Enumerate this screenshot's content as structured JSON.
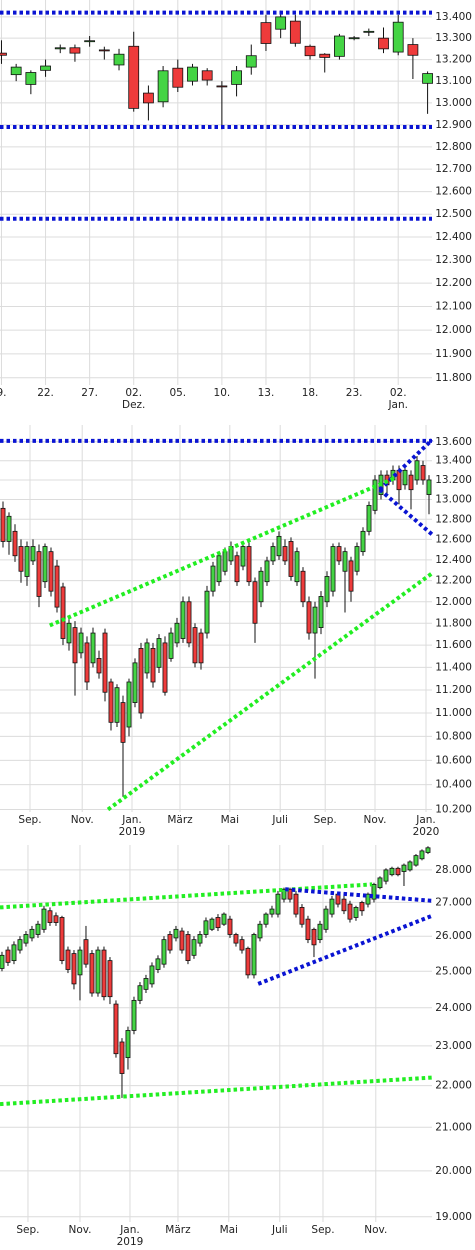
{
  "chart_data": [
    {
      "type": "candlestick",
      "log": true,
      "grid": true,
      "up_color": "#44d444",
      "down_color": "#ee3b3b",
      "ylim": [
        11770,
        13480
      ],
      "xlim": [
        -0.1,
        29.3
      ],
      "yticks": [
        {
          "value": 13400,
          "label": "13.400"
        },
        {
          "value": 13300,
          "label": "13.300"
        },
        {
          "value": 13200,
          "label": "13.200"
        },
        {
          "value": 13100,
          "label": "13.100"
        },
        {
          "value": 13000,
          "label": "13.000"
        },
        {
          "value": 12900,
          "label": "12.900"
        },
        {
          "value": 12800,
          "label": "12.800"
        },
        {
          "value": 12700,
          "label": "12.700"
        },
        {
          "value": 12600,
          "label": "12.600"
        },
        {
          "value": 12500,
          "label": "12.500"
        },
        {
          "value": 12400,
          "label": "12.400"
        },
        {
          "value": 12300,
          "label": "12.300"
        },
        {
          "value": 12200,
          "label": "12.200"
        },
        {
          "value": 12100,
          "label": "12.100"
        },
        {
          "value": 12000,
          "label": "12.000"
        },
        {
          "value": 11900,
          "label": "11.900"
        },
        {
          "value": 11800,
          "label": "11.800"
        }
      ],
      "xticks": [
        {
          "value": 0,
          "label": "9."
        },
        {
          "value": 3,
          "label": "22."
        },
        {
          "value": 6,
          "label": "27."
        },
        {
          "value": 9,
          "label": "02. Dez."
        },
        {
          "value": 12,
          "label": "05."
        },
        {
          "value": 15,
          "label": "10."
        },
        {
          "value": 18,
          "label": "13."
        },
        {
          "value": 21,
          "label": "18."
        },
        {
          "value": 24,
          "label": "23."
        },
        {
          "value": 27,
          "label": "02. Jan."
        }
      ],
      "open": [
        13230,
        13130,
        13085,
        13150,
        13250,
        13255,
        13285,
        13245,
        13175,
        13262,
        13045,
        13005,
        13160,
        13100,
        13148,
        13078,
        13085,
        13165,
        13373,
        13342,
        13380,
        13262,
        13225,
        13215,
        13300,
        13330,
        13300,
        13235,
        13270,
        13090
      ],
      "high": [
        13290,
        13180,
        13150,
        13200,
        13270,
        13270,
        13310,
        13260,
        13250,
        13330,
        13080,
        13170,
        13200,
        13180,
        13160,
        13100,
        13170,
        13270,
        13410,
        13430,
        13410,
        13270,
        13230,
        13320,
        13310,
        13345,
        13350,
        13410,
        13300,
        13145
      ],
      "low": [
        13180,
        13100,
        13040,
        13120,
        13230,
        13190,
        13260,
        13200,
        13150,
        12960,
        12920,
        12980,
        13050,
        13080,
        13080,
        12880,
        13030,
        13130,
        13240,
        13300,
        13260,
        13200,
        13140,
        13200,
        13290,
        13310,
        13230,
        13220,
        13110,
        12950
      ],
      "close": [
        13220,
        13165,
        13140,
        13170,
        13255,
        13230,
        13288,
        13242,
        13225,
        12975,
        13000,
        13148,
        13072,
        13165,
        13105,
        13075,
        13148,
        13218,
        13275,
        13400,
        13276,
        13218,
        13210,
        13310,
        13302,
        13332,
        13250,
        13375,
        13220,
        13135
      ],
      "lines": [
        {
          "color": "#0a14d2",
          "points": [
            [
              -0.1,
              13420
            ],
            [
              29.3,
              13420
            ]
          ]
        },
        {
          "color": "#0a14d2",
          "points": [
            [
              -0.1,
              12890
            ],
            [
              29.3,
              12890
            ]
          ]
        },
        {
          "color": "#0a14d2",
          "points": [
            [
              -0.1,
              12480
            ],
            [
              29.3,
              12480
            ]
          ]
        }
      ]
    },
    {
      "type": "candlestick",
      "log": true,
      "grid": true,
      "up_color": "#44d444",
      "down_color": "#ee3b3b",
      "ylim": [
        10180,
        13780
      ],
      "xlim": [
        -0.5,
        71.5
      ],
      "yticks": [
        {
          "value": 13600,
          "label": "13.600"
        },
        {
          "value": 13400,
          "label": "13.400"
        },
        {
          "value": 13200,
          "label": "13.200"
        },
        {
          "value": 13000,
          "label": "13.000"
        },
        {
          "value": 12800,
          "label": "12.800"
        },
        {
          "value": 12600,
          "label": "12.600"
        },
        {
          "value": 12400,
          "label": "12.400"
        },
        {
          "value": 12200,
          "label": "12.200"
        },
        {
          "value": 12000,
          "label": "12.000"
        },
        {
          "value": 11800,
          "label": "11.800"
        },
        {
          "value": 11600,
          "label": "11.600"
        },
        {
          "value": 11400,
          "label": "11.400"
        },
        {
          "value": 11200,
          "label": "11.200"
        },
        {
          "value": 11000,
          "label": "11.000"
        },
        {
          "value": 10800,
          "label": "10.800"
        },
        {
          "value": 10600,
          "label": "10.600"
        },
        {
          "value": 10400,
          "label": "10.400"
        },
        {
          "value": 10200,
          "label": "10.200"
        }
      ],
      "xticks": [
        {
          "value": 4.5,
          "label": "Sep."
        },
        {
          "value": 13.2,
          "label": "Nov."
        },
        {
          "value": 21.5,
          "label": "Jan. 2019"
        },
        {
          "value": 29.5,
          "label": "März"
        },
        {
          "value": 37.8,
          "label": "Mai"
        },
        {
          "value": 46.2,
          "label": "Juli"
        },
        {
          "value": 53.7,
          "label": "Sep."
        },
        {
          "value": 62,
          "label": "Nov."
        },
        {
          "value": 70.5,
          "label": "Jan. 2020"
        }
      ],
      "open": [
        12910,
        12580,
        12680,
        12530,
        12240,
        12390,
        12480,
        12190,
        12480,
        12340,
        12140,
        11620,
        11760,
        11530,
        11620,
        11440,
        11480,
        11710,
        11270,
        10920,
        11090,
        10880,
        11090,
        11570,
        11350,
        11570,
        11400,
        11620,
        11480,
        11620,
        11660,
        12000,
        11760,
        11710,
        11710,
        12100,
        12190,
        12290,
        12390,
        12440,
        12340,
        12530,
        12190,
        12000,
        12190,
        12390,
        12440,
        12530,
        12580,
        12190,
        12290,
        12000,
        11710,
        11760,
        12000,
        12100,
        12530,
        12290,
        12390,
        12290,
        12480,
        12680,
        12890,
        13050,
        13250,
        13200,
        13300,
        13150,
        13250,
        13200,
        13350,
        13050
      ],
      "high": [
        12980,
        12870,
        12750,
        12600,
        12580,
        12600,
        12550,
        12560,
        12520,
        12400,
        12180,
        11850,
        11820,
        11760,
        11680,
        11760,
        11550,
        11750,
        11300,
        11250,
        11150,
        11300,
        11480,
        11620,
        11660,
        11620,
        11700,
        11680,
        11760,
        11850,
        12050,
        12050,
        11800,
        11750,
        12150,
        12380,
        12480,
        12520,
        12580,
        12480,
        12560,
        12570,
        12230,
        12330,
        12430,
        12570,
        12680,
        12600,
        12620,
        12520,
        12330,
        12050,
        12000,
        12100,
        12290,
        12560,
        12570,
        12520,
        12430,
        12570,
        12720,
        12980,
        13250,
        13300,
        13300,
        13350,
        13350,
        13350,
        13300,
        13450,
        13400,
        13250
      ],
      "low": [
        12520,
        12450,
        12380,
        12180,
        12150,
        12350,
        11950,
        12130,
        12050,
        11900,
        11600,
        11550,
        11150,
        11480,
        11200,
        11400,
        11300,
        11100,
        10850,
        10880,
        10300,
        10800,
        11050,
        10950,
        11300,
        11220,
        11350,
        11150,
        11450,
        11580,
        11620,
        11580,
        11400,
        11380,
        11660,
        12050,
        12150,
        12250,
        12350,
        12150,
        12300,
        12150,
        11620,
        11950,
        12150,
        12350,
        12400,
        12350,
        12200,
        12150,
        11950,
        11650,
        11300,
        11700,
        11950,
        12050,
        12350,
        11900,
        12000,
        12250,
        12440,
        12640,
        12850,
        13000,
        13050,
        13150,
        12950,
        13100,
        12900,
        13150,
        13150,
        12850
      ],
      "close": [
        12580,
        12830,
        12440,
        12290,
        12530,
        12530,
        12050,
        12530,
        12100,
        11950,
        11660,
        11800,
        11440,
        11710,
        11270,
        11710,
        11350,
        11180,
        10920,
        11220,
        10750,
        11270,
        11440,
        11000,
        11620,
        11270,
        11660,
        11180,
        11710,
        11800,
        12000,
        11620,
        11440,
        11440,
        12100,
        12340,
        12440,
        12480,
        12530,
        12190,
        12530,
        12190,
        11800,
        12290,
        12390,
        12530,
        12630,
        12390,
        12240,
        12480,
        12000,
        11710,
        11950,
        12050,
        12240,
        12530,
        12390,
        12480,
        12100,
        12530,
        12680,
        12940,
        13200,
        13250,
        13150,
        13300,
        13100,
        13300,
        13100,
        13400,
        13200,
        13200
      ],
      "lines": [
        {
          "color": "#0a14d2",
          "points": [
            [
              -0.5,
              13610
            ],
            [
              71.5,
              13610
            ]
          ]
        },
        {
          "color": "#0a14d2",
          "points": [
            [
              62.8,
              13100
            ],
            [
              71.5,
              13620
            ]
          ]
        },
        {
          "color": "#0a14d2",
          "points": [
            [
              62.8,
              13100
            ],
            [
              71.5,
              12650
            ]
          ]
        },
        {
          "color": "#22ee22",
          "points": [
            [
              7.8,
              11780
            ],
            [
              65.3,
              13220
            ]
          ]
        },
        {
          "color": "#22ee22",
          "points": [
            [
              17.5,
              10200
            ],
            [
              71.5,
              12270
            ]
          ]
        }
      ]
    },
    {
      "type": "candlestick",
      "log": true,
      "grid": true,
      "up_color": "#44d444",
      "down_color": "#ee3b3b",
      "ylim": [
        18890,
        28790
      ],
      "xlim": [
        -0.33,
        71.67
      ],
      "yticks": [
        {
          "value": 28000,
          "label": "28.000"
        },
        {
          "value": 27000,
          "label": "27.000"
        },
        {
          "value": 26000,
          "label": "26.000"
        },
        {
          "value": 25000,
          "label": "25.000"
        },
        {
          "value": 24000,
          "label": "24.000"
        },
        {
          "value": 23000,
          "label": "23.000"
        },
        {
          "value": 22000,
          "label": "22.000"
        },
        {
          "value": 21000,
          "label": "21.000"
        },
        {
          "value": 20000,
          "label": "20.000"
        },
        {
          "value": 19000,
          "label": "19.000"
        }
      ],
      "xticks": [
        {
          "value": 4.33,
          "label": "Sep."
        },
        {
          "value": 13,
          "label": "Nov."
        },
        {
          "value": 21.33,
          "label": "Jan. 2019"
        },
        {
          "value": 29.33,
          "label": "März"
        },
        {
          "value": 37.8,
          "label": "Mai"
        },
        {
          "value": 46.3,
          "label": "Juli"
        },
        {
          "value": 53.5,
          "label": "Sep."
        },
        {
          "value": 62.3,
          "label": "Nov."
        }
      ],
      "open": [
        25080,
        25600,
        25300,
        25600,
        25800,
        25950,
        26050,
        26200,
        26750,
        26600,
        26550,
        25600,
        25500,
        24900,
        25900,
        25500,
        24400,
        25600,
        25300,
        24100,
        23100,
        22700,
        23400,
        24200,
        24500,
        24650,
        25050,
        25200,
        26050,
        25950,
        26150,
        26050,
        25450,
        25800,
        26050,
        26200,
        26550,
        26350,
        26500,
        26050,
        25900,
        25650,
        24900,
        25950,
        26350,
        26650,
        26650,
        27100,
        27400,
        27250,
        26850,
        26500,
        26200,
        25900,
        26200,
        26650,
        27250,
        27100,
        26950,
        26550,
        27000,
        26950,
        27100,
        27450,
        27650,
        27850,
        28050,
        27950,
        28000,
        28150,
        28350,
        28550
      ],
      "high": [
        25550,
        25700,
        25850,
        26000,
        26150,
        26300,
        26450,
        26900,
        26850,
        26700,
        26600,
        25700,
        25600,
        25700,
        26300,
        25600,
        25700,
        25700,
        25400,
        24200,
        23200,
        23500,
        24300,
        24700,
        24900,
        25250,
        25450,
        26000,
        26150,
        26300,
        26250,
        26150,
        26000,
        26150,
        26550,
        26550,
        26650,
        26700,
        26600,
        26100,
        26000,
        25700,
        26100,
        26450,
        26700,
        26900,
        27350,
        27450,
        27450,
        27350,
        26950,
        26600,
        26250,
        26450,
        26900,
        27200,
        27300,
        27200,
        27050,
        26900,
        27050,
        27300,
        27600,
        27800,
        28050,
        28100,
        28100,
        28200,
        28300,
        28500,
        28650,
        28750
      ],
      "low": [
        25000,
        25150,
        25200,
        25500,
        25700,
        25850,
        25950,
        26100,
        26300,
        26300,
        25200,
        24950,
        24500,
        24200,
        25100,
        24300,
        24300,
        24200,
        24100,
        22700,
        21700,
        22400,
        23300,
        24100,
        24400,
        24550,
        24950,
        25100,
        25500,
        25850,
        25500,
        25200,
        25350,
        25700,
        25950,
        26150,
        26150,
        26300,
        25950,
        25700,
        25500,
        24800,
        24800,
        25850,
        26250,
        26550,
        26550,
        27000,
        27000,
        26550,
        26250,
        25800,
        25400,
        25800,
        26100,
        26550,
        26850,
        26650,
        26400,
        26450,
        26600,
        26850,
        27000,
        27400,
        27550,
        27800,
        27800,
        27500,
        27950,
        28100,
        28300,
        28500
      ],
      "close": [
        25450,
        25250,
        25750,
        25900,
        26050,
        26200,
        26350,
        26800,
        26400,
        26400,
        25300,
        25050,
        24650,
        25600,
        25200,
        24400,
        25600,
        24300,
        24300,
        22800,
        22300,
        23400,
        24200,
        24600,
        24800,
        25150,
        25350,
        25900,
        25600,
        26200,
        25600,
        25300,
        25900,
        26050,
        26450,
        26500,
        26250,
        26650,
        26050,
        25800,
        25600,
        24900,
        26050,
        26350,
        26650,
        26800,
        27250,
        27400,
        27100,
        26650,
        26350,
        25900,
        25750,
        26350,
        26800,
        27100,
        26950,
        26750,
        26500,
        26850,
        26750,
        27250,
        27550,
        27750,
        28000,
        28050,
        27850,
        28150,
        28250,
        28450,
        28600,
        28700
      ],
      "lines": [
        {
          "color": "#22ee22",
          "points": [
            [
              -0.33,
              26850
            ],
            [
              61.7,
              27550
            ]
          ]
        },
        {
          "color": "#22ee22",
          "points": [
            [
              -0.33,
              21550
            ],
            [
              71.67,
              22200
            ]
          ]
        },
        {
          "color": "#0a14d2",
          "points": [
            [
              47.2,
              27400
            ],
            [
              71.67,
              27050
            ]
          ]
        },
        {
          "color": "#0a14d2",
          "points": [
            [
              42.7,
              24650
            ],
            [
              71.67,
              26600
            ]
          ]
        }
      ]
    }
  ]
}
